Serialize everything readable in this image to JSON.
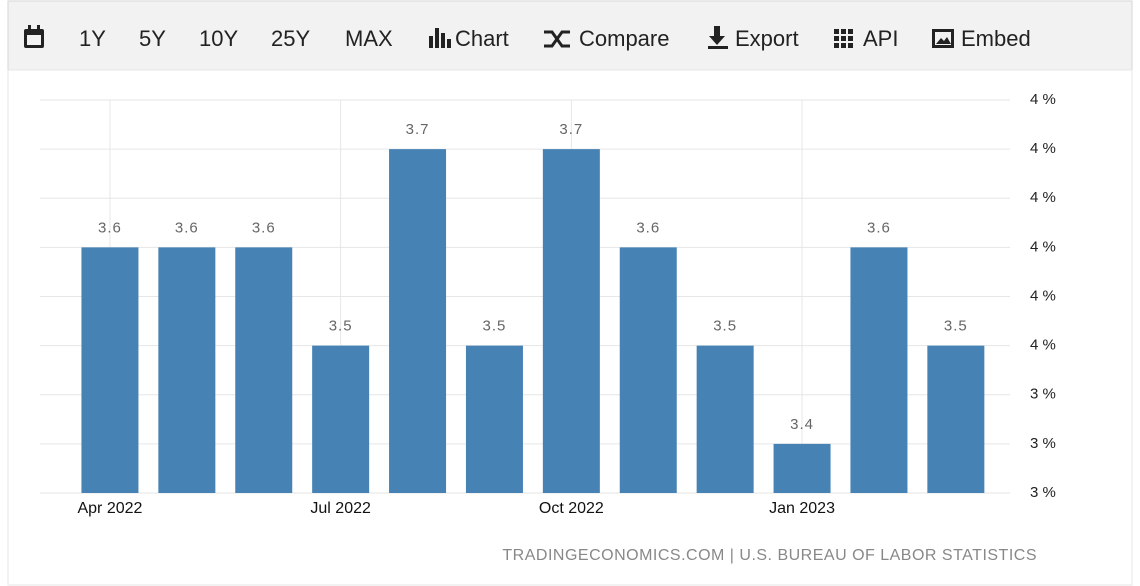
{
  "toolbar": {
    "items": [
      "1Y",
      "5Y",
      "10Y",
      "25Y",
      "MAX",
      "Chart",
      "Compare",
      "Export",
      "API",
      "Embed"
    ]
  },
  "chart_data": {
    "type": "bar",
    "categories": [
      "Apr 2022",
      null,
      null,
      "Jul 2022",
      null,
      null,
      "Oct 2022",
      null,
      null,
      "Jan 2023",
      null,
      null
    ],
    "values": [
      3.6,
      3.6,
      3.6,
      3.5,
      3.7,
      3.5,
      3.7,
      3.6,
      3.5,
      3.4,
      3.6,
      3.5
    ],
    "color": "#4682b4",
    "ylim": [
      3.35,
      3.75
    ],
    "yticks": [
      {
        "value": 3.35,
        "label": "3 %"
      },
      {
        "value": 3.4,
        "label": "3 %"
      },
      {
        "value": 3.45,
        "label": "3 %"
      },
      {
        "value": 3.5,
        "label": "4 %"
      },
      {
        "value": 3.55,
        "label": "4 %"
      },
      {
        "value": 3.6,
        "label": "4 %"
      },
      {
        "value": 3.65,
        "label": "4 %"
      },
      {
        "value": 3.7,
        "label": "4 %"
      },
      {
        "value": 3.75,
        "label": "4 %"
      }
    ],
    "grid": true,
    "source": "TRADINGECONOMICS.COM | U.S. BUREAU OF LABOR STATISTICS"
  }
}
